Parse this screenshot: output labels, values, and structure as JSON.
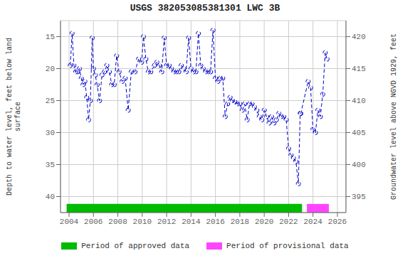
{
  "chart_data": {
    "type": "line",
    "title": "USGS 382053085381301 LWC 3B",
    "ylabel": "Depth to water level, feet below land\nsurface",
    "y2label": "Groundwater level above NGVD 1929, feet",
    "x": [
      2004.1,
      2004.25,
      2004.4,
      2004.55,
      2004.7,
      2004.85,
      2005.0,
      2005.15,
      2005.3,
      2005.45,
      2005.6,
      2005.75,
      2005.9,
      2006.0,
      2006.15,
      2006.3,
      2006.5,
      2006.7,
      2006.9,
      2007.1,
      2007.3,
      2007.5,
      2007.7,
      2007.9,
      2008.1,
      2008.35,
      2008.6,
      2008.85,
      2009.1,
      2009.4,
      2009.7,
      2009.95,
      2010.1,
      2010.3,
      2010.5,
      2010.7,
      2011.0,
      2011.2,
      2011.4,
      2011.6,
      2011.8,
      2012.0,
      2012.2,
      2012.4,
      2012.6,
      2012.8,
      2013.0,
      2013.2,
      2013.4,
      2013.6,
      2013.8,
      2014.0,
      2014.2,
      2014.4,
      2014.6,
      2014.8,
      2015.0,
      2015.2,
      2015.4,
      2015.6,
      2015.8,
      2016.0,
      2016.2,
      2016.4,
      2016.6,
      2016.8,
      2017.0,
      2017.2,
      2017.4,
      2017.6,
      2017.8,
      2018.0,
      2018.2,
      2018.4,
      2018.6,
      2018.8,
      2019.0,
      2019.2,
      2019.4,
      2019.6,
      2019.8,
      2020.0,
      2020.2,
      2020.4,
      2020.6,
      2020.8,
      2021.0,
      2021.2,
      2021.4,
      2021.6,
      2021.8,
      2022.0,
      2022.2,
      2022.4,
      2022.6,
      2022.8,
      2022.95,
      2023.0,
      2023.6,
      2023.8,
      2024.0,
      2024.2,
      2024.4,
      2024.6,
      2024.8,
      2025.0,
      2025.15
    ],
    "series": [
      {
        "values": [
          19.5,
          14.5,
          19.5,
          20.5,
          20.5,
          20.0,
          21.5,
          22.5,
          22.0,
          24.5,
          28.0,
          25.0,
          15.2,
          20.0,
          21.0,
          22.5,
          25.0,
          21.0,
          20.5,
          19.5,
          20.5,
          22.5,
          22.5,
          18.0,
          20.5,
          22.0,
          21.5,
          26.5,
          20.5,
          20.5,
          18.5,
          19.0,
          15.0,
          18.5,
          20.5,
          20.5,
          19.5,
          19.0,
          19.5,
          20.5,
          15.2,
          19.5,
          19.5,
          20.0,
          20.5,
          20.5,
          20.5,
          19.5,
          20.0,
          20.5,
          15.2,
          20.0,
          20.5,
          20.5,
          14.5,
          19.5,
          20.0,
          20.5,
          20.5,
          20.5,
          14.0,
          21.5,
          22.0,
          21.5,
          21.5,
          27.5,
          25.5,
          24.5,
          25.0,
          25.2,
          25.5,
          25.5,
          26.5,
          25.5,
          28.0,
          25.5,
          25.5,
          26.0,
          26.5,
          27.5,
          28.0,
          26.5,
          27.5,
          28.5,
          27.5,
          28.5,
          28.0,
          27.0,
          27.5,
          27.5,
          28.0,
          32.5,
          33.5,
          34.0,
          34.5,
          38.0,
          27.0,
          27.0,
          22.0,
          23.0,
          29.5,
          30.0,
          26.5,
          27.5,
          24.0,
          17.5,
          18.5
        ],
        "color": "#0000cc",
        "marker": "circle",
        "line_style": "dashed"
      }
    ],
    "xlim": [
      2003.3,
      2026.7
    ],
    "xticks": [
      2004,
      2006,
      2008,
      2010,
      2012,
      2014,
      2016,
      2018,
      2020,
      2022,
      2024,
      2026
    ],
    "ylim": [
      42.5,
      12.5
    ],
    "yticks": [
      15,
      20,
      25,
      30,
      35,
      40
    ],
    "y2lim": [
      392.5,
      422.5
    ],
    "y2ticks": [
      395,
      400,
      405,
      410,
      415,
      420
    ],
    "grid": true,
    "legend": "bottom",
    "periods": [
      {
        "name": "Period of approved data",
        "start": 2003.8,
        "end": 2023.1,
        "color": "#00bb00"
      },
      {
        "name": "Period of provisional data",
        "start": 2023.5,
        "end": 2025.3,
        "color": "#ff44ff"
      }
    ]
  }
}
